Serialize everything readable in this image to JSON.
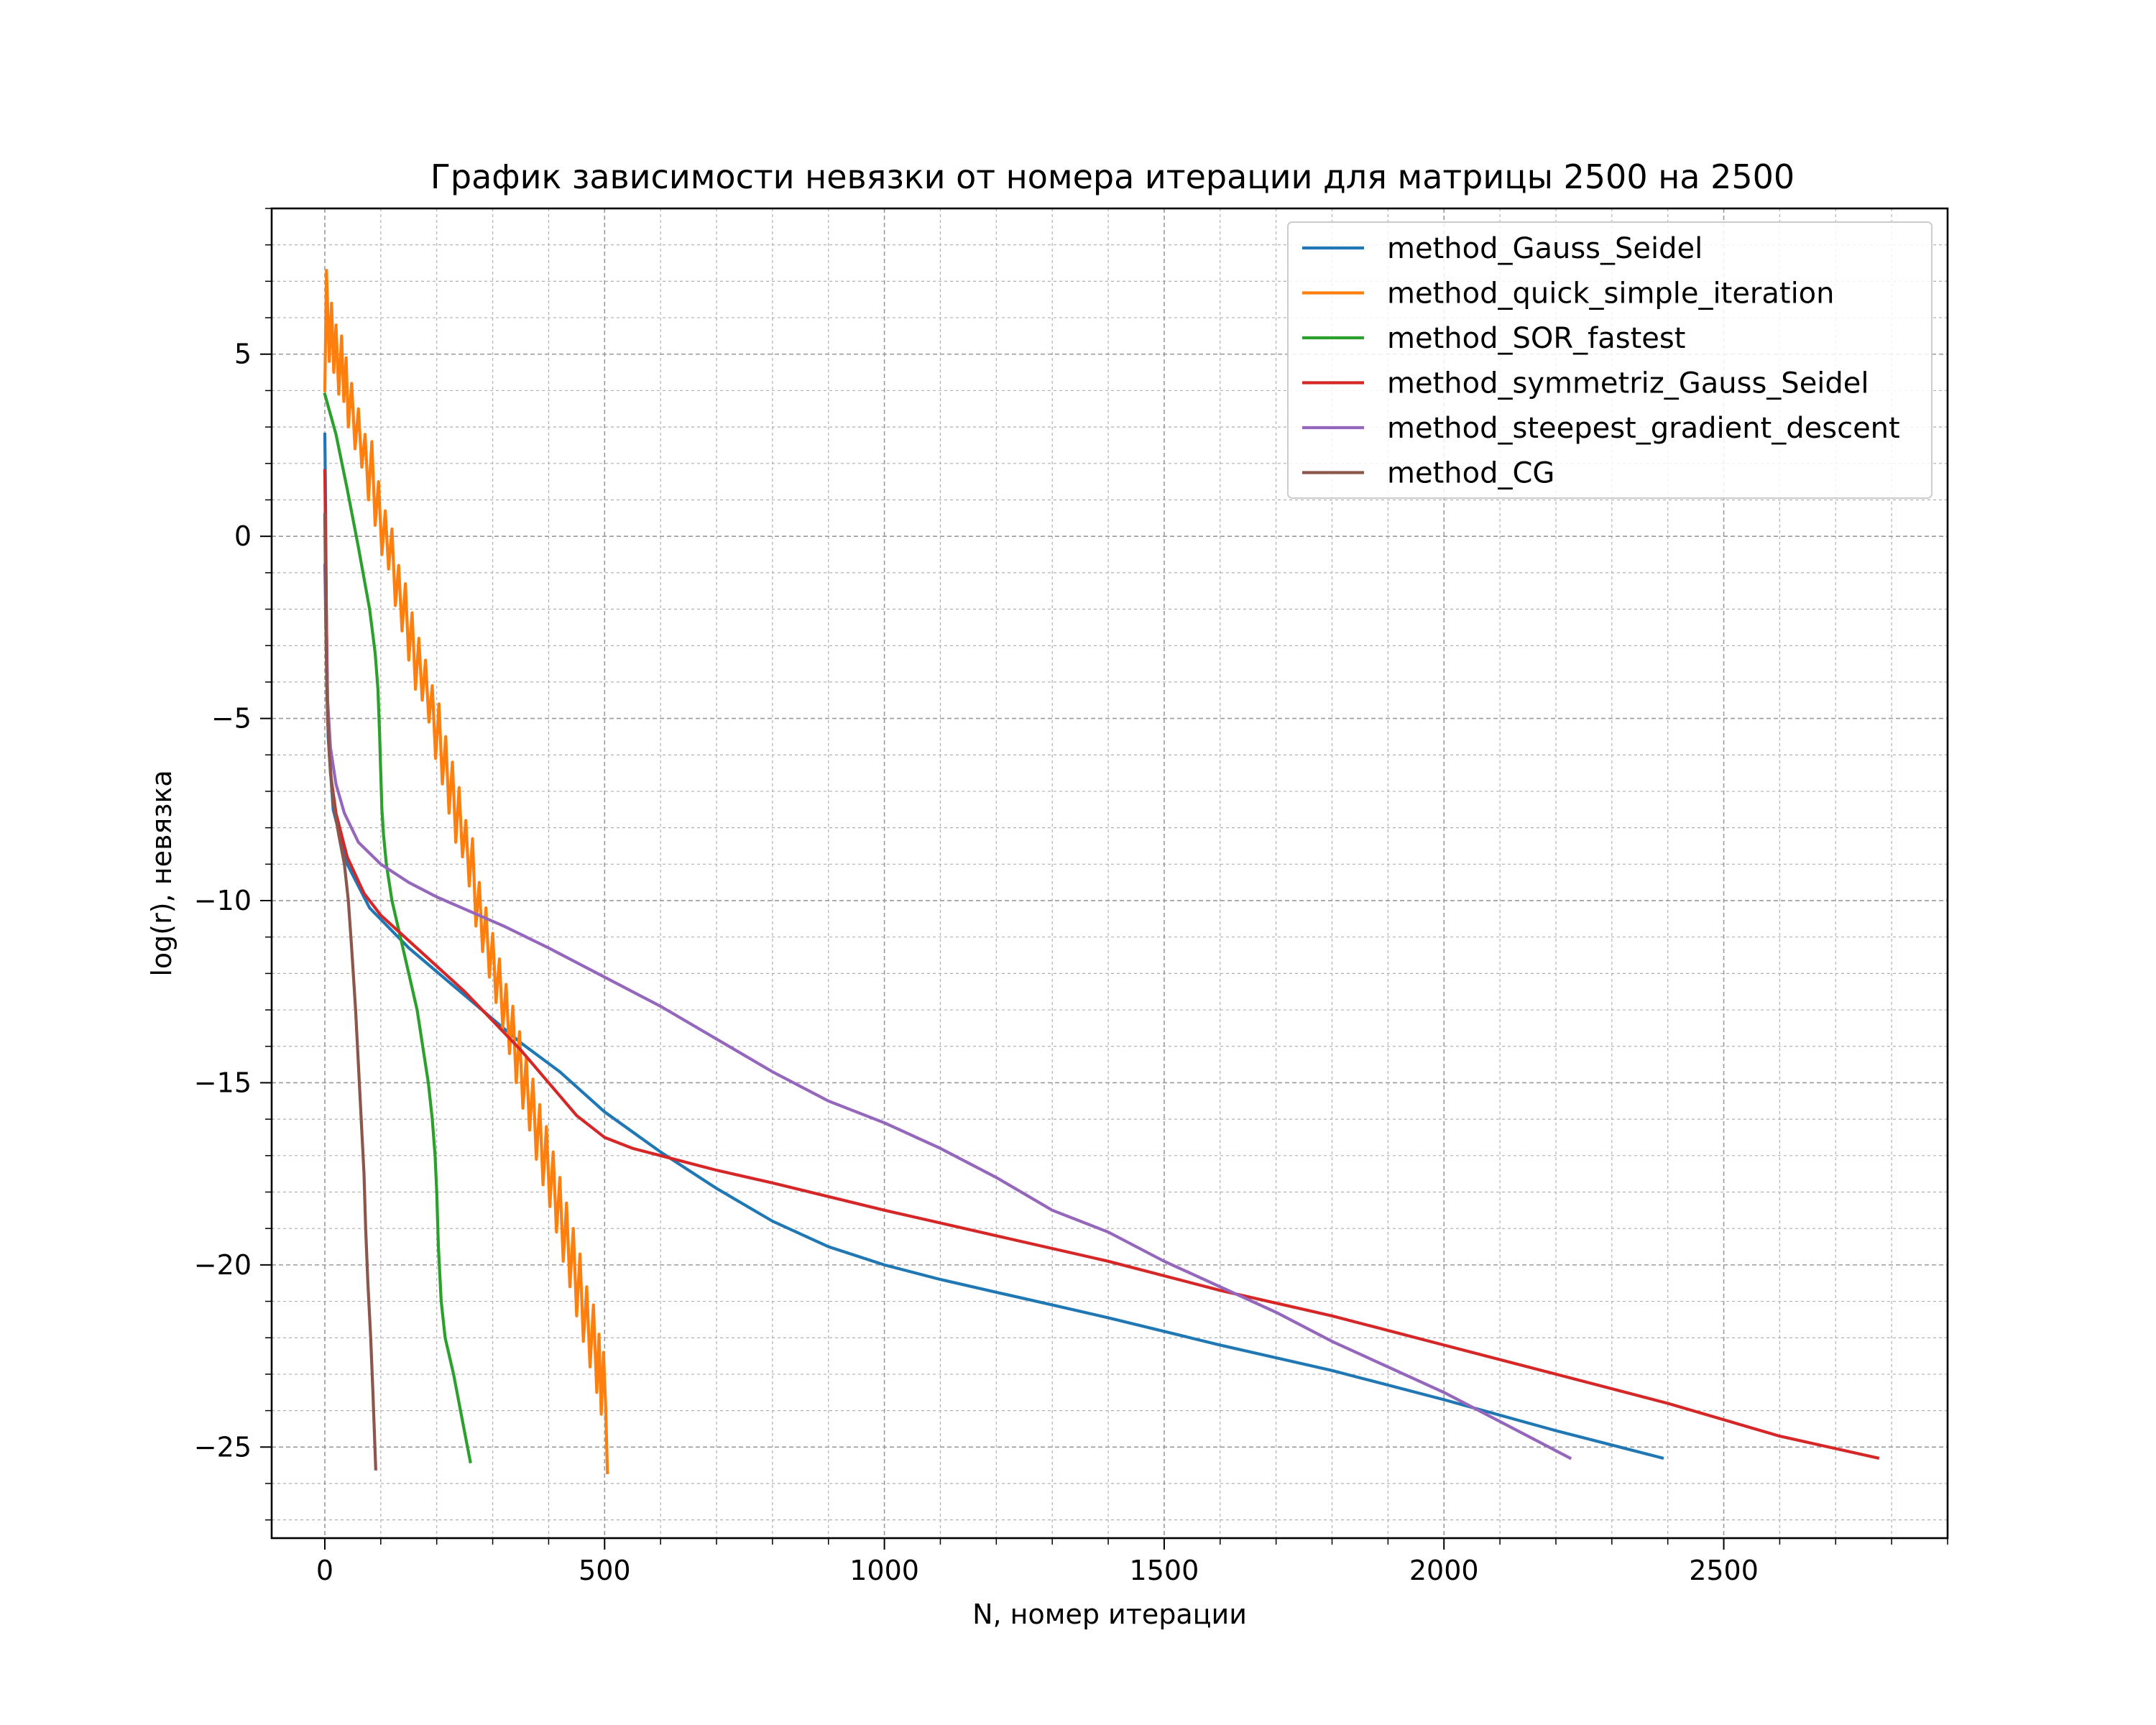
{
  "chart_data": {
    "type": "line",
    "title": "График зависимости невязки от номера итерации для матрицы 2500 на 2500",
    "xlabel": "N, номер итерации",
    "ylabel": "log(r), невязка",
    "xlim": [
      -95,
      2900
    ],
    "ylim": [
      -27.5,
      9.0
    ],
    "xticks": [
      0,
      500,
      1000,
      1500,
      2000,
      2500
    ],
    "xtick_labels": [
      "0",
      "500",
      "1000",
      "1500",
      "2000",
      "2500"
    ],
    "yticks": [
      5,
      0,
      -5,
      -10,
      -15,
      -20,
      -25
    ],
    "ytick_labels": [
      "5",
      "0",
      "−5",
      "−10",
      "−15",
      "−20",
      "−25"
    ],
    "grid": true,
    "minor_grid": true,
    "legend_position": "upper right",
    "series": [
      {
        "name": "method_Gauss_Seidel",
        "color": "#1f77b4",
        "points": [
          [
            0,
            2.8
          ],
          [
            1,
            1.5
          ],
          [
            3,
            -2.5
          ],
          [
            6,
            -5.5
          ],
          [
            15,
            -7.5
          ],
          [
            40,
            -9.0
          ],
          [
            80,
            -10.2
          ],
          [
            150,
            -11.3
          ],
          [
            250,
            -12.6
          ],
          [
            350,
            -13.9
          ],
          [
            420,
            -14.7
          ],
          [
            500,
            -15.8
          ],
          [
            600,
            -16.9
          ],
          [
            700,
            -17.9
          ],
          [
            800,
            -18.8
          ],
          [
            900,
            -19.5
          ],
          [
            1000,
            -20.0
          ],
          [
            1100,
            -20.4
          ],
          [
            1200,
            -20.75
          ],
          [
            1300,
            -21.1
          ],
          [
            1400,
            -21.45
          ],
          [
            1600,
            -22.2
          ],
          [
            1800,
            -22.9
          ],
          [
            2000,
            -23.7
          ],
          [
            2200,
            -24.55
          ],
          [
            2390,
            -25.3
          ]
        ]
      },
      {
        "name": "method_quick_simple_iteration",
        "color": "#ff7f0e",
        "points": [
          [
            0,
            4.0
          ],
          [
            3,
            7.3
          ],
          [
            8,
            4.8
          ],
          [
            12,
            6.4
          ],
          [
            16,
            4.5
          ],
          [
            20,
            5.8
          ],
          [
            25,
            3.9
          ],
          [
            30,
            5.5
          ],
          [
            34,
            3.7
          ],
          [
            38,
            4.9
          ],
          [
            42,
            3.0
          ],
          [
            48,
            4.2
          ],
          [
            54,
            2.4
          ],
          [
            60,
            3.5
          ],
          [
            66,
            1.9
          ],
          [
            72,
            2.8
          ],
          [
            78,
            1.0
          ],
          [
            84,
            2.6
          ],
          [
            90,
            0.3
          ],
          [
            96,
            1.5
          ],
          [
            102,
            -0.5
          ],
          [
            108,
            0.7
          ],
          [
            114,
            -0.9
          ],
          [
            120,
            0.2
          ],
          [
            126,
            -1.9
          ],
          [
            132,
            -0.8
          ],
          [
            138,
            -2.6
          ],
          [
            144,
            -1.3
          ],
          [
            150,
            -3.4
          ],
          [
            156,
            -2.1
          ],
          [
            162,
            -4.2
          ],
          [
            168,
            -2.8
          ],
          [
            174,
            -4.5
          ],
          [
            180,
            -3.4
          ],
          [
            186,
            -5.1
          ],
          [
            192,
            -4.1
          ],
          [
            198,
            -6.1
          ],
          [
            204,
            -4.6
          ],
          [
            210,
            -6.8
          ],
          [
            216,
            -5.5
          ],
          [
            222,
            -7.6
          ],
          [
            228,
            -6.2
          ],
          [
            234,
            -8.4
          ],
          [
            240,
            -6.9
          ],
          [
            246,
            -8.8
          ],
          [
            252,
            -7.8
          ],
          [
            258,
            -9.6
          ],
          [
            264,
            -8.3
          ],
          [
            270,
            -10.7
          ],
          [
            276,
            -9.5
          ],
          [
            282,
            -11.4
          ],
          [
            288,
            -10.2
          ],
          [
            294,
            -12.1
          ],
          [
            300,
            -10.9
          ],
          [
            306,
            -12.8
          ],
          [
            312,
            -11.6
          ],
          [
            318,
            -13.5
          ],
          [
            324,
            -12.3
          ],
          [
            330,
            -14.2
          ],
          [
            336,
            -12.9
          ],
          [
            342,
            -15.0
          ],
          [
            348,
            -13.6
          ],
          [
            354,
            -15.7
          ],
          [
            360,
            -14.3
          ],
          [
            366,
            -16.3
          ],
          [
            372,
            -14.9
          ],
          [
            378,
            -17.1
          ],
          [
            384,
            -15.6
          ],
          [
            390,
            -17.8
          ],
          [
            396,
            -16.2
          ],
          [
            402,
            -18.4
          ],
          [
            408,
            -16.9
          ],
          [
            414,
            -19.1
          ],
          [
            420,
            -17.6
          ],
          [
            426,
            -19.9
          ],
          [
            432,
            -18.3
          ],
          [
            438,
            -20.6
          ],
          [
            444,
            -19.0
          ],
          [
            450,
            -21.4
          ],
          [
            456,
            -19.7
          ],
          [
            462,
            -22.1
          ],
          [
            468,
            -20.6
          ],
          [
            474,
            -22.8
          ],
          [
            480,
            -21.1
          ],
          [
            486,
            -23.5
          ],
          [
            490,
            -21.9
          ],
          [
            494,
            -24.1
          ],
          [
            498,
            -22.4
          ],
          [
            502,
            -23.9
          ],
          [
            505,
            -25.7
          ]
        ]
      },
      {
        "name": "method_SOR_fastest",
        "color": "#2ca02c",
        "points": [
          [
            0,
            3.9
          ],
          [
            20,
            2.8
          ],
          [
            40,
            1.3
          ],
          [
            60,
            -0.3
          ],
          [
            80,
            -2.0
          ],
          [
            90,
            -3.2
          ],
          [
            95,
            -4.2
          ],
          [
            98,
            -5.5
          ],
          [
            100,
            -6.5
          ],
          [
            102,
            -7.5
          ],
          [
            105,
            -8.2
          ],
          [
            110,
            -9.0
          ],
          [
            120,
            -10.0
          ],
          [
            135,
            -11.0
          ],
          [
            150,
            -12.0
          ],
          [
            165,
            -13.0
          ],
          [
            175,
            -14.0
          ],
          [
            185,
            -15.0
          ],
          [
            192,
            -16.0
          ],
          [
            197,
            -17.0
          ],
          [
            200,
            -18.0
          ],
          [
            203,
            -19.5
          ],
          [
            208,
            -21.0
          ],
          [
            215,
            -22.0
          ],
          [
            230,
            -23.0
          ],
          [
            245,
            -24.2
          ],
          [
            260,
            -25.4
          ]
        ]
      },
      {
        "name": "method_symmetriz_Gauss_Seidel",
        "color": "#d62728",
        "points": [
          [
            0,
            1.8
          ],
          [
            1,
            0.5
          ],
          [
            3,
            -2.5
          ],
          [
            5,
            -5.0
          ],
          [
            10,
            -6.5
          ],
          [
            20,
            -7.6
          ],
          [
            40,
            -8.8
          ],
          [
            70,
            -9.8
          ],
          [
            100,
            -10.4
          ],
          [
            150,
            -11.1
          ],
          [
            200,
            -11.8
          ],
          [
            250,
            -12.5
          ],
          [
            300,
            -13.3
          ],
          [
            350,
            -14.1
          ],
          [
            400,
            -15.0
          ],
          [
            450,
            -15.9
          ],
          [
            500,
            -16.5
          ],
          [
            550,
            -16.8
          ],
          [
            600,
            -17.0
          ],
          [
            700,
            -17.4
          ],
          [
            800,
            -17.75
          ],
          [
            1000,
            -18.5
          ],
          [
            1200,
            -19.2
          ],
          [
            1400,
            -19.9
          ],
          [
            1600,
            -20.7
          ],
          [
            1800,
            -21.4
          ],
          [
            2000,
            -22.2
          ],
          [
            2200,
            -23.0
          ],
          [
            2400,
            -23.8
          ],
          [
            2600,
            -24.7
          ],
          [
            2775,
            -25.3
          ]
        ]
      },
      {
        "name": "method_steepest_gradient_descent",
        "color": "#9467bd",
        "points": [
          [
            0,
            -0.8
          ],
          [
            2,
            -2.5
          ],
          [
            5,
            -4.5
          ],
          [
            10,
            -5.8
          ],
          [
            20,
            -6.8
          ],
          [
            35,
            -7.6
          ],
          [
            60,
            -8.4
          ],
          [
            100,
            -9.0
          ],
          [
            150,
            -9.5
          ],
          [
            200,
            -9.9
          ],
          [
            260,
            -10.3
          ],
          [
            320,
            -10.7
          ],
          [
            400,
            -11.3
          ],
          [
            500,
            -12.1
          ],
          [
            600,
            -12.9
          ],
          [
            700,
            -13.8
          ],
          [
            800,
            -14.7
          ],
          [
            900,
            -15.5
          ],
          [
            1000,
            -16.1
          ],
          [
            1100,
            -16.8
          ],
          [
            1200,
            -17.6
          ],
          [
            1300,
            -18.5
          ],
          [
            1400,
            -19.1
          ],
          [
            1500,
            -19.9
          ],
          [
            1600,
            -20.6
          ],
          [
            1700,
            -21.3
          ],
          [
            1800,
            -22.1
          ],
          [
            1900,
            -22.8
          ],
          [
            2000,
            -23.5
          ],
          [
            2100,
            -24.3
          ],
          [
            2225,
            -25.3
          ]
        ]
      },
      {
        "name": "method_CG",
        "color": "#8c564b",
        "points": [
          [
            0,
            0.6
          ],
          [
            2,
            -2.5
          ],
          [
            4,
            -4.5
          ],
          [
            8,
            -6.0
          ],
          [
            15,
            -7.3
          ],
          [
            25,
            -8.2
          ],
          [
            35,
            -9.0
          ],
          [
            42,
            -10.0
          ],
          [
            48,
            -11.3
          ],
          [
            55,
            -13.0
          ],
          [
            60,
            -14.5
          ],
          [
            65,
            -16.0
          ],
          [
            70,
            -17.5
          ],
          [
            73,
            -19.0
          ],
          [
            77,
            -20.5
          ],
          [
            82,
            -22.0
          ],
          [
            86,
            -23.5
          ],
          [
            89,
            -24.8
          ],
          [
            91,
            -25.6
          ]
        ]
      }
    ]
  }
}
